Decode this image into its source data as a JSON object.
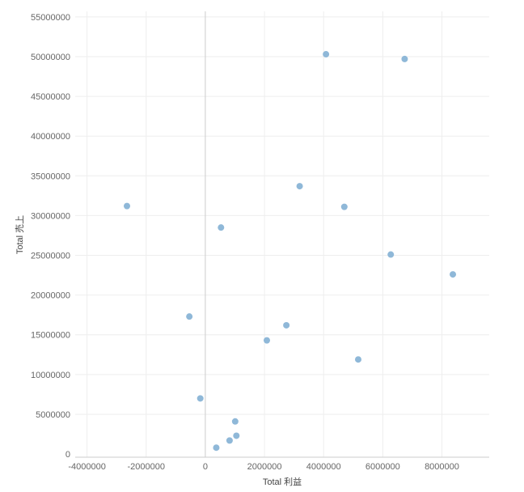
{
  "chart_data": {
    "type": "scatter",
    "xlabel": "Total 利益",
    "ylabel": "Total 売上",
    "xlim": [
      -4400000,
      9600000
    ],
    "ylim": [
      -400000,
      55700000
    ],
    "x_ticks": [
      -4000000,
      -2000000,
      0,
      2000000,
      4000000,
      6000000,
      8000000
    ],
    "x_tick_labels": [
      "-4000000",
      "-2000000",
      "0",
      "2000000",
      "4000000",
      "6000000",
      "8000000"
    ],
    "y_ticks": [
      0,
      5000000,
      10000000,
      15000000,
      20000000,
      25000000,
      30000000,
      35000000,
      40000000,
      45000000,
      50000000,
      55000000
    ],
    "y_tick_labels": [
      "0",
      "5000000",
      "10000000",
      "15000000",
      "20000000",
      "25000000",
      "30000000",
      "35000000",
      "40000000",
      "45000000",
      "50000000",
      "55000000"
    ],
    "grid": true,
    "color": "#8fb8d8",
    "points": [
      {
        "x": 4080000,
        "y": 50300000
      },
      {
        "x": 6740000,
        "y": 49700000
      },
      {
        "x": 3190000,
        "y": 33700000
      },
      {
        "x": -2650000,
        "y": 31200000
      },
      {
        "x": 4700000,
        "y": 31100000
      },
      {
        "x": 530000,
        "y": 28500000
      },
      {
        "x": 6270000,
        "y": 25100000
      },
      {
        "x": 8370000,
        "y": 22600000
      },
      {
        "x": -540000,
        "y": 17300000
      },
      {
        "x": 2740000,
        "y": 16200000
      },
      {
        "x": 2080000,
        "y": 14300000
      },
      {
        "x": 5170000,
        "y": 11900000
      },
      {
        "x": -170000,
        "y": 7000000
      },
      {
        "x": 1010000,
        "y": 4100000
      },
      {
        "x": 1050000,
        "y": 2300000
      },
      {
        "x": 820000,
        "y": 1700000
      },
      {
        "x": 370000,
        "y": 800000
      }
    ]
  }
}
